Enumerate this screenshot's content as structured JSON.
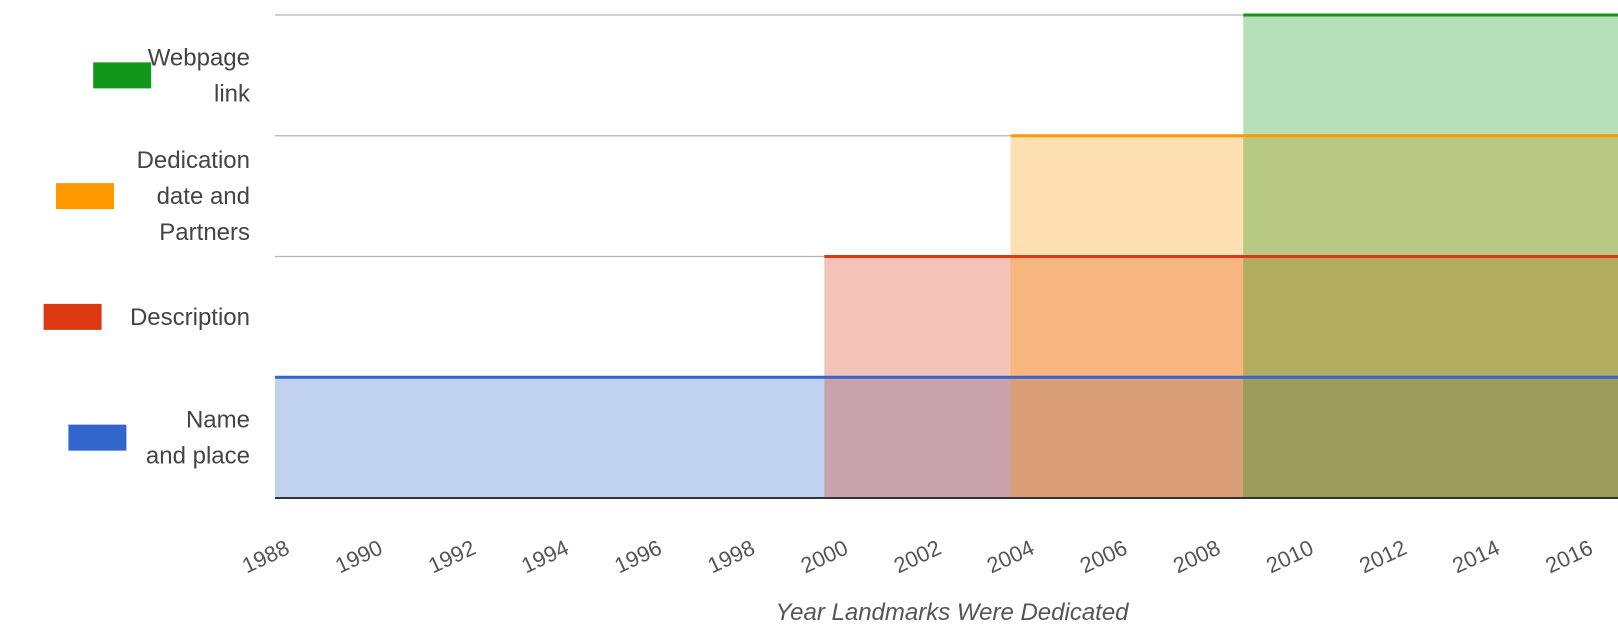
{
  "chart_data": {
    "type": "area",
    "xlabel": "Year Landmarks Were Dedicated",
    "xlim": [
      1988,
      2017
    ],
    "x_ticks": [
      "1988",
      "1990",
      "1992",
      "1994",
      "1996",
      "1998",
      "2000",
      "2002",
      "2004",
      "2006",
      "2008",
      "2010",
      "2012",
      "2014",
      "2016"
    ],
    "stepped": true,
    "gridlines": true,
    "legend_position": "left",
    "series": [
      {
        "name": "Name and place",
        "label_lines": [
          "Name",
          "and place"
        ],
        "color": "#3366cc",
        "start_year": 1988,
        "value": 1
      },
      {
        "name": "Description",
        "label_lines": [
          "Description"
        ],
        "color": "#dc3912",
        "start_year": 1999.8,
        "value": 1
      },
      {
        "name": "Dedication date and Partners",
        "label_lines": [
          "Dedication",
          "date and",
          "Partners"
        ],
        "color": "#ff9900",
        "start_year": 2003.8,
        "value": 1
      },
      {
        "name": "Webpage link",
        "label_lines": [
          "Webpage",
          "link"
        ],
        "color": "#109618",
        "start_year": 2008.8,
        "value": 1
      }
    ]
  }
}
